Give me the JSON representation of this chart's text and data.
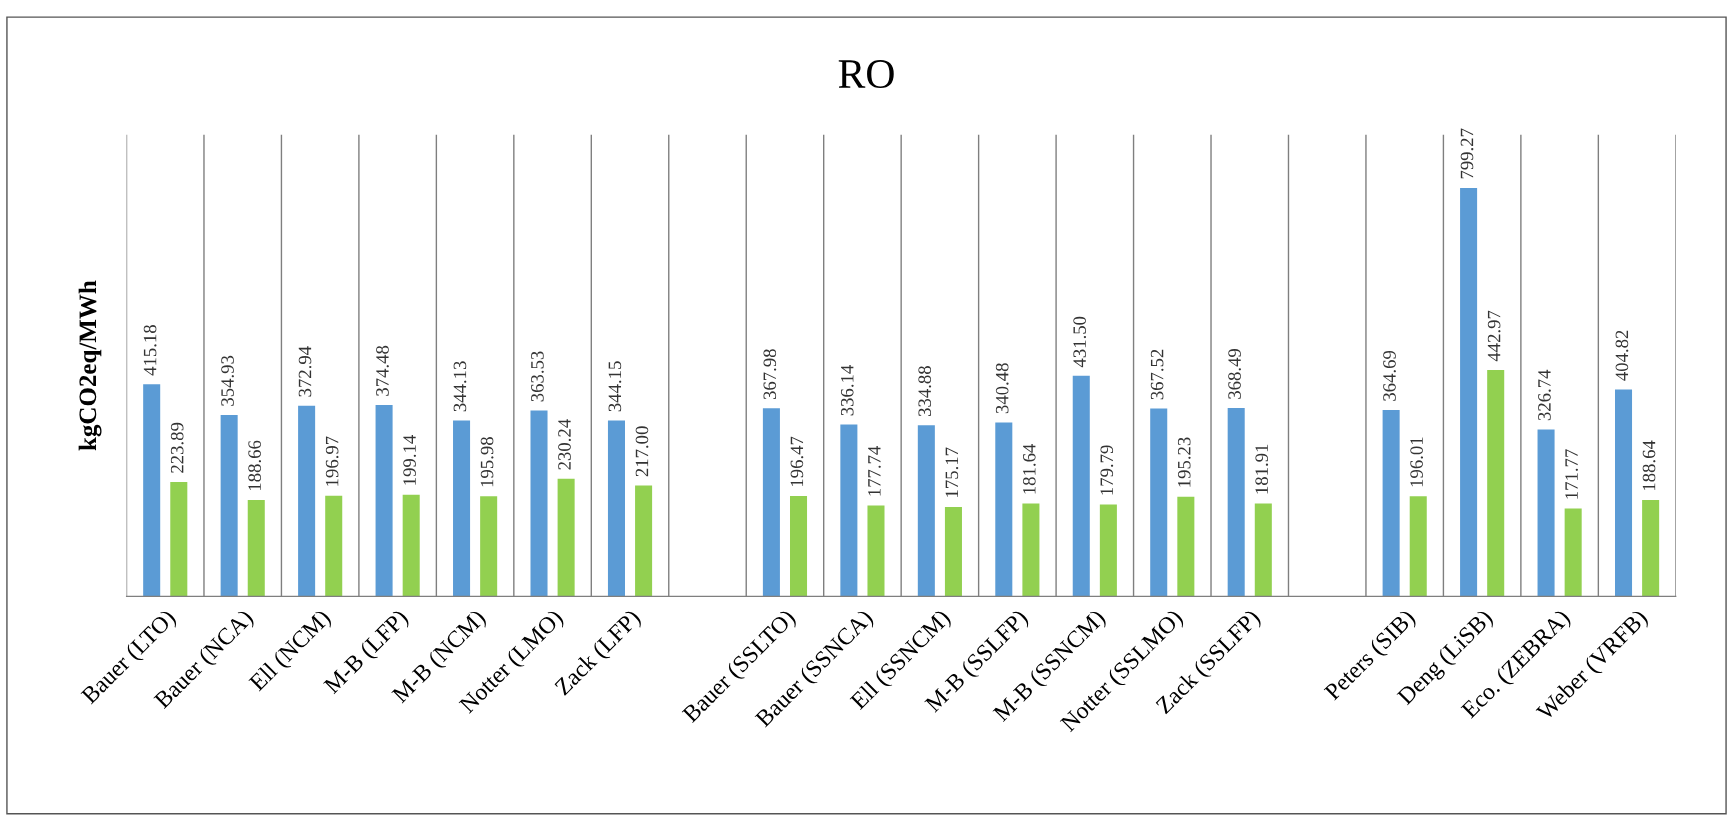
{
  "chart_data": {
    "type": "bar",
    "title": "RO",
    "ylabel": "kgCO2eq/MWh",
    "categories": [
      "Bauer (LTO)",
      "Bauer (NCA)",
      "Ell (NCM)",
      "M-B (LFP)",
      "M-B (NCM)",
      "Notter (LMO)",
      "Zack (LFP)",
      null,
      "Bauer (SSLTO)",
      "Bauer (SSNCA)",
      "Ell (SSNCM)",
      "M-B (SSLFP)",
      "M-B (SSNCM)",
      "Notter (SSLMO)",
      "Zack (SSLFP)",
      null,
      "Peters (SIB)",
      "Deng (LiSB)",
      "Eco. (ZEBRA)",
      "Weber (VRFB)"
    ],
    "series": [
      {
        "color": "#5b9bd5",
        "values": [
          415.18,
          354.93,
          372.94,
          374.48,
          344.13,
          363.53,
          344.15,
          null,
          367.98,
          336.14,
          334.88,
          340.48,
          431.5,
          367.52,
          368.49,
          null,
          364.69,
          799.27,
          326.74,
          404.82
        ],
        "value_labels": [
          "415.18",
          "354.93",
          "372.94",
          "374.48",
          "344.13",
          "363.53",
          "344.15",
          null,
          "367.98",
          "336.14",
          "334.88",
          "340.48",
          "431.50",
          "367.52",
          "368.49",
          null,
          "364.69",
          "799.27",
          "326.74",
          "404.82"
        ]
      },
      {
        "color": "#92d050",
        "values": [
          223.89,
          188.66,
          196.97,
          199.14,
          195.98,
          230.24,
          217.0,
          null,
          196.47,
          177.74,
          175.17,
          181.64,
          179.79,
          195.23,
          181.91,
          null,
          196.01,
          442.97,
          171.77,
          188.64
        ],
        "value_labels": [
          "223.89",
          "188.66",
          "196.97",
          "199.14",
          "195.98",
          "230.24",
          "217.00",
          null,
          "196.47",
          "177.74",
          "175.17",
          "181.64",
          "179.79",
          "195.23",
          "181.91",
          null,
          "196.01",
          "442.97",
          "171.77",
          "188.64"
        ]
      }
    ],
    "grid": "x",
    "legend": false
  }
}
